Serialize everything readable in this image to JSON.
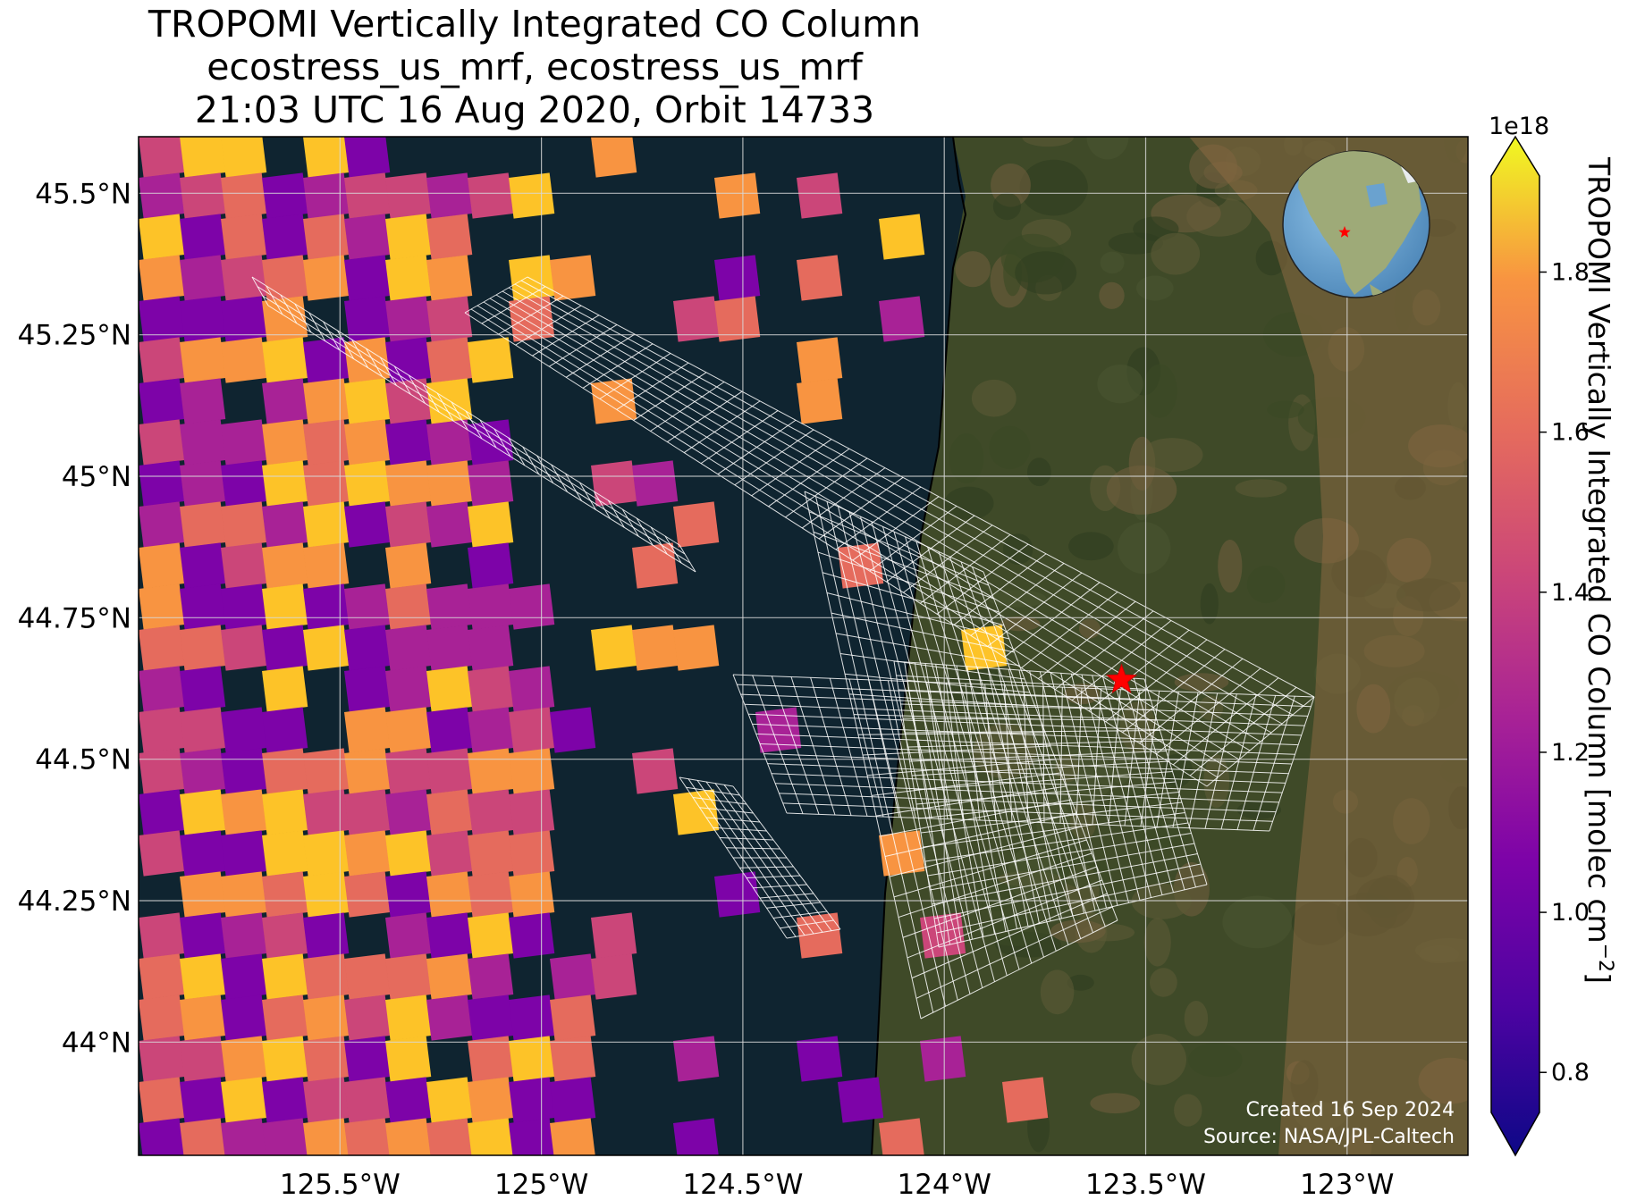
{
  "title": {
    "line1": "TROPOMI Vertically Integrated CO Column",
    "line2": "ecostress_us_mrf, ecostress_us_mrf",
    "line3": "21:03 UTC 16 Aug 2020, Orbit 14733"
  },
  "map": {
    "extent": {
      "lon_min": -126.0,
      "lon_max": -122.7,
      "lat_min": 43.8,
      "lat_max": 45.6
    },
    "lon_ticks": [
      {
        "value": -125.5,
        "label": "125.5°W"
      },
      {
        "value": -125.0,
        "label": "125°W"
      },
      {
        "value": -124.5,
        "label": "124.5°W"
      },
      {
        "value": -124.0,
        "label": "124°W"
      },
      {
        "value": -123.5,
        "label": "123.5°W"
      },
      {
        "value": -123.0,
        "label": "123°W"
      }
    ],
    "lat_ticks": [
      {
        "value": 45.5,
        "label": "45.5°N"
      },
      {
        "value": 45.25,
        "label": "45.25°N"
      },
      {
        "value": 45.0,
        "label": "45°N"
      },
      {
        "value": 44.75,
        "label": "44.75°N"
      },
      {
        "value": 44.5,
        "label": "44.5°N"
      },
      {
        "value": 44.25,
        "label": "44.25°N"
      },
      {
        "value": 44.0,
        "label": "44°N"
      }
    ],
    "coastline_lon": -124.02,
    "target_marker": {
      "lon": -123.56,
      "lat": 44.64,
      "symbol": "red-star"
    },
    "gridlines": true,
    "colors": {
      "ocean": "#0f2430",
      "land": "#3d4a26",
      "grid": "#d8d8d8",
      "swath": "#ffffff",
      "marker": "#ff0000"
    }
  },
  "inset_globe": {
    "icon": "globe-icon",
    "marker": "red-star",
    "placement": "top-right"
  },
  "colorbar": {
    "label": "TROPOMI Vertically Integrated CO Column [molec cm",
    "label_exponent": "−2",
    "label_close": "]",
    "multiplier": "1e18",
    "min": 0.75,
    "max": 1.92,
    "colormap": "plasma",
    "extend": "both",
    "ticks": [
      {
        "value": 0.8,
        "label": "0.8"
      },
      {
        "value": 1.0,
        "label": "1.0"
      },
      {
        "value": 1.2,
        "label": "1.2"
      },
      {
        "value": 1.4,
        "label": "1.4"
      },
      {
        "value": 1.6,
        "label": "1.6"
      },
      {
        "value": 1.8,
        "label": "1.8"
      }
    ]
  },
  "credits": {
    "created": "Created 16 Sep 2024",
    "source": "Source: NASA/JPL-Caltech"
  }
}
